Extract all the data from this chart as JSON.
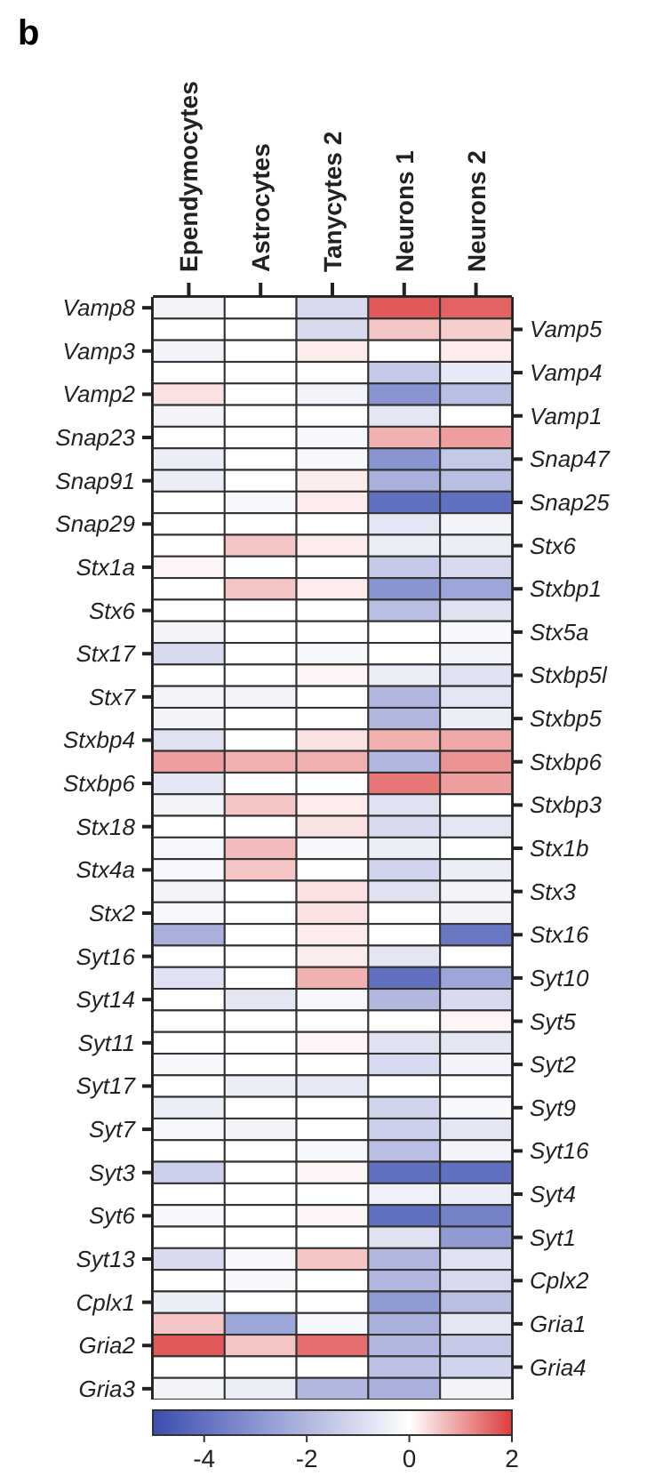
{
  "chart_data": {
    "type": "heatmap",
    "title": "b",
    "categories": [
      "Ependymocytes",
      "Astrocytes",
      "Tanycytes 2",
      "Neurons 1",
      "Neurons 2"
    ],
    "y_categories": [
      "Vamp8",
      null,
      "Vamp3",
      null,
      "Vamp2",
      null,
      "Snap23",
      null,
      "Snap91",
      null,
      "Snap29",
      null,
      "Stx1a",
      null,
      "Stx6",
      null,
      "Stx17",
      null,
      "Stx7",
      null,
      "Stxbp4",
      null,
      "Stxbp6",
      null,
      "Stx18",
      null,
      "Stx4a",
      null,
      "Stx2",
      null,
      "Syt16",
      null,
      "Syt14",
      null,
      "Syt11",
      null,
      "Syt17",
      null,
      "Syt7",
      null,
      "Syt3",
      null,
      "Syt6",
      null,
      "Syt13",
      null,
      "Cplx1",
      null,
      "Gria2",
      null,
      "Gria3"
    ],
    "y2_categories": [
      null,
      "Vamp5",
      null,
      "Vamp4",
      null,
      "Vamp1",
      null,
      "Snap47",
      null,
      "Snap25",
      null,
      "Stx6",
      null,
      "Stxbp1",
      null,
      "Stx5a",
      null,
      "Stxbp5l",
      null,
      "Stxbp5",
      null,
      "Stxbp6",
      null,
      "Stxbp3",
      null,
      "Stx1b",
      null,
      "Stx3",
      null,
      "Stx16",
      null,
      "Syt10",
      null,
      "Syt5",
      null,
      "Syt2",
      null,
      "Syt9",
      null,
      "Syt16",
      null,
      "Syt4",
      null,
      "Syt1",
      null,
      "Cplx2",
      null,
      "Gria1",
      null,
      "Gria4",
      null
    ],
    "cells": [
      [
        -0.3,
        0,
        -1.0,
        1.7,
        1.6
      ],
      [
        0,
        0,
        -1.0,
        0.6,
        0.5
      ],
      [
        -0.3,
        0,
        0.2,
        0,
        0.2
      ],
      [
        0,
        0,
        0,
        -1.5,
        -0.6
      ],
      [
        0.3,
        0,
        -0.3,
        -3.0,
        -1.8
      ],
      [
        -0.3,
        0,
        0,
        -0.7,
        0
      ],
      [
        0,
        0,
        -0.2,
        0.8,
        1.0
      ],
      [
        -0.5,
        0,
        -0.2,
        -3.0,
        -1.5
      ],
      [
        -0.5,
        0,
        0.2,
        -2.2,
        -1.8
      ],
      [
        0,
        -0.2,
        0.2,
        -4.0,
        -4.0
      ],
      [
        0,
        0,
        0,
        -0.7,
        -0.3
      ],
      [
        0,
        0.6,
        0.2,
        -0.5,
        -0.5
      ],
      [
        0.1,
        0,
        0,
        -1.5,
        -1.0
      ],
      [
        0,
        0.6,
        0.2,
        -3.0,
        -2.5
      ],
      [
        0,
        0,
        0,
        -1.8,
        -0.8
      ],
      [
        -0.3,
        0,
        0,
        0,
        -0.2
      ],
      [
        -1.0,
        0,
        -0.2,
        0,
        -0.3
      ],
      [
        0,
        0,
        0.1,
        -0.5,
        -0.8
      ],
      [
        -0.3,
        -0.3,
        0,
        -2.0,
        -0.7
      ],
      [
        -0.3,
        0,
        0,
        -2.0,
        -0.5
      ],
      [
        -0.8,
        0,
        0.3,
        0.8,
        0.9
      ],
      [
        1.0,
        0.8,
        0.8,
        -2.0,
        1.1
      ],
      [
        -0.7,
        0,
        0,
        1.4,
        1.0
      ],
      [
        -0.3,
        0.6,
        0.2,
        -0.8,
        0
      ],
      [
        0,
        0,
        0.3,
        -1.0,
        -0.7
      ],
      [
        -0.2,
        0.7,
        -0.2,
        -0.5,
        0
      ],
      [
        -0.2,
        0.6,
        0,
        -1.2,
        -0.5
      ],
      [
        -0.3,
        0,
        0.3,
        -0.8,
        -0.3
      ],
      [
        -0.2,
        0,
        0.3,
        0,
        -0.3
      ],
      [
        -2.2,
        0,
        0.2,
        0,
        -3.8
      ],
      [
        0,
        0,
        0.2,
        -0.7,
        0
      ],
      [
        -0.8,
        0,
        0.8,
        -4.0,
        -2.5
      ],
      [
        0,
        -0.7,
        -0.2,
        -2.0,
        -1.0
      ],
      [
        0,
        0,
        0,
        0,
        0.1
      ],
      [
        0,
        0,
        0.1,
        -0.8,
        -0.7
      ],
      [
        -0.2,
        0,
        0,
        -1.0,
        -0.3
      ],
      [
        0,
        -0.5,
        -0.6,
        0,
        0
      ],
      [
        -0.5,
        0,
        0,
        -1.2,
        -0.2
      ],
      [
        -0.2,
        -0.3,
        0,
        -1.3,
        -0.7
      ],
      [
        0,
        0,
        -0.2,
        -1.8,
        -0.3
      ],
      [
        -1.3,
        0,
        0.1,
        -4.0,
        -4.0
      ],
      [
        0,
        0,
        0,
        -0.4,
        -0.5
      ],
      [
        -0.2,
        0,
        0.1,
        -4.0,
        -3.5
      ],
      [
        0,
        0,
        0,
        -0.8,
        -2.8
      ],
      [
        -1.0,
        -0.2,
        0.6,
        -2.0,
        -0.8
      ],
      [
        0,
        -0.2,
        0,
        -2.0,
        -1.0
      ],
      [
        -0.5,
        0,
        0,
        -2.8,
        -1.8
      ],
      [
        0.6,
        -2.5,
        -0.2,
        -2.2,
        -0.7
      ],
      [
        1.7,
        0.6,
        1.5,
        -2.0,
        -1.5
      ],
      [
        0,
        0,
        0,
        -1.7,
        -1.2
      ],
      [
        -0.3,
        -0.5,
        -2.0,
        -2.2,
        -0.3
      ]
    ],
    "clim": [
      -5,
      2
    ],
    "cticks": [
      -4,
      -2,
      0,
      2
    ]
  }
}
